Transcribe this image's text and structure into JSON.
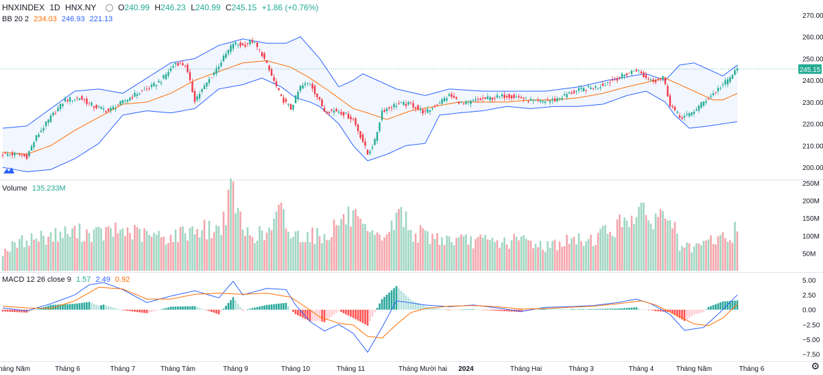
{
  "header": {
    "symbol": "HNXINDEX",
    "interval": "1D",
    "exchange": "HNX.NY",
    "o_label": "O",
    "o_value": "240.99",
    "h_label": "H",
    "h_value": "246.23",
    "l_label": "L",
    "l_value": "240.99",
    "c_label": "C",
    "c_value": "245.15",
    "change": "+1.86 (+0.76%)"
  },
  "bb_legend": {
    "label": "BB 20 2",
    "basis": "234.03",
    "upper": "246.93",
    "lower": "221.13"
  },
  "volume_legend": {
    "label": "Volume",
    "value": "135.233M"
  },
  "macd_legend": {
    "label": "MACD 12 26 close 9",
    "hist": "1.57",
    "macd": "2.49",
    "signal": "0.92"
  },
  "last_price_tag": "245.15",
  "colors": {
    "up": "#22ab94",
    "down": "#f23645",
    "vol_up": "#9fd6c2",
    "vol_down": "#f4a4ab",
    "bb_band": "#2962ff",
    "bb_basis": "#ff6d00",
    "macd_line": "#2962ff",
    "signal_line": "#ff6d00",
    "hist_up_strong": "#26a69a",
    "hist_up_weak": "#b2dfdb",
    "hist_down_strong": "#ff5252",
    "hist_down_weak": "#ffcdd2"
  },
  "chart_data": [
    {
      "type": "candlestick",
      "name": "price",
      "ylim": [
        195,
        275
      ],
      "ytick_labels": [
        "270.00",
        "260.00",
        "250.00",
        "240.00",
        "230.00",
        "220.00",
        "210.00",
        "200.00"
      ],
      "x_tick_labels": [
        "Tháng Năm",
        "Tháng 6",
        "Tháng 7",
        "Tháng Tám",
        "Tháng 9",
        "Tháng 10",
        "Tháng 11",
        "Tháng Mười hai",
        "2024",
        "Tháng Hai",
        "Tháng 3",
        "Tháng 4",
        "Tháng Năm",
        "Tháng 6"
      ],
      "close_anchors": [
        [
          0,
          206
        ],
        [
          6,
          206
        ],
        [
          10,
          205
        ],
        [
          14,
          214
        ],
        [
          20,
          223
        ],
        [
          26,
          231
        ],
        [
          32,
          232
        ],
        [
          38,
          228
        ],
        [
          44,
          226
        ],
        [
          50,
          230
        ],
        [
          56,
          234
        ],
        [
          62,
          237
        ],
        [
          66,
          240
        ],
        [
          72,
          248
        ],
        [
          76,
          247
        ],
        [
          80,
          231
        ],
        [
          84,
          237
        ],
        [
          90,
          247
        ],
        [
          96,
          257
        ],
        [
          100,
          256
        ],
        [
          104,
          258
        ],
        [
          108,
          252
        ],
        [
          112,
          242
        ],
        [
          116,
          232
        ],
        [
          120,
          227
        ],
        [
          124,
          237
        ],
        [
          128,
          239
        ],
        [
          134,
          226
        ],
        [
          140,
          226
        ],
        [
          146,
          222
        ],
        [
          150,
          212
        ],
        [
          152,
          206
        ],
        [
          155,
          212
        ],
        [
          158,
          226
        ],
        [
          164,
          229
        ],
        [
          170,
          229
        ],
        [
          176,
          225
        ],
        [
          182,
          230
        ],
        [
          186,
          233
        ],
        [
          192,
          229
        ],
        [
          198,
          231
        ],
        [
          204,
          232
        ],
        [
          210,
          233
        ],
        [
          216,
          232
        ],
        [
          222,
          230
        ],
        [
          230,
          231
        ],
        [
          236,
          234
        ],
        [
          242,
          236
        ],
        [
          248,
          237
        ],
        [
          254,
          240
        ],
        [
          260,
          243
        ],
        [
          264,
          245
        ],
        [
          268,
          241
        ],
        [
          272,
          240
        ],
        [
          275,
          242
        ],
        [
          278,
          229
        ],
        [
          282,
          223
        ],
        [
          286,
          224
        ],
        [
          290,
          228
        ],
        [
          294,
          232
        ],
        [
          298,
          236
        ],
        [
          302,
          240
        ],
        [
          306,
          245.15
        ]
      ],
      "bb_upper_anchors": [
        [
          0,
          218
        ],
        [
          10,
          219
        ],
        [
          20,
          227
        ],
        [
          30,
          235
        ],
        [
          40,
          236
        ],
        [
          50,
          234
        ],
        [
          60,
          241
        ],
        [
          70,
          248
        ],
        [
          80,
          250
        ],
        [
          90,
          256
        ],
        [
          100,
          259
        ],
        [
          110,
          257
        ],
        [
          118,
          257
        ],
        [
          124,
          260
        ],
        [
          132,
          250
        ],
        [
          140,
          237
        ],
        [
          146,
          240
        ],
        [
          150,
          243
        ],
        [
          156,
          240
        ],
        [
          164,
          236
        ],
        [
          176,
          233
        ],
        [
          186,
          236
        ],
        [
          200,
          235
        ],
        [
          214,
          235
        ],
        [
          226,
          235
        ],
        [
          240,
          237
        ],
        [
          252,
          240
        ],
        [
          262,
          242
        ],
        [
          268,
          243
        ],
        [
          276,
          240
        ],
        [
          282,
          247
        ],
        [
          288,
          248
        ],
        [
          294,
          245
        ],
        [
          300,
          242
        ],
        [
          306,
          247
        ]
      ],
      "bb_basis_anchors": [
        [
          0,
          207
        ],
        [
          10,
          206
        ],
        [
          20,
          210
        ],
        [
          30,
          217
        ],
        [
          40,
          223
        ],
        [
          50,
          229
        ],
        [
          60,
          230
        ],
        [
          70,
          234
        ],
        [
          80,
          240
        ],
        [
          90,
          244
        ],
        [
          100,
          248
        ],
        [
          110,
          249
        ],
        [
          120,
          246
        ],
        [
          128,
          241
        ],
        [
          136,
          235
        ],
        [
          146,
          227
        ],
        [
          152,
          225
        ],
        [
          160,
          222
        ],
        [
          170,
          226
        ],
        [
          180,
          228
        ],
        [
          190,
          230
        ],
        [
          200,
          230
        ],
        [
          210,
          230
        ],
        [
          220,
          231
        ],
        [
          230,
          231
        ],
        [
          240,
          232
        ],
        [
          250,
          234
        ],
        [
          260,
          237
        ],
        [
          268,
          239
        ],
        [
          276,
          241
        ],
        [
          286,
          236
        ],
        [
          296,
          231
        ],
        [
          300,
          231
        ],
        [
          306,
          234
        ]
      ],
      "bb_lower_anchors": [
        [
          0,
          200
        ],
        [
          10,
          198
        ],
        [
          20,
          199
        ],
        [
          30,
          204
        ],
        [
          40,
          211
        ],
        [
          50,
          224
        ],
        [
          60,
          226
        ],
        [
          70,
          225
        ],
        [
          80,
          227
        ],
        [
          90,
          236
        ],
        [
          100,
          238
        ],
        [
          108,
          241
        ],
        [
          116,
          237
        ],
        [
          122,
          232
        ],
        [
          128,
          230
        ],
        [
          132,
          228
        ],
        [
          140,
          220
        ],
        [
          146,
          210
        ],
        [
          152,
          203
        ],
        [
          160,
          206
        ],
        [
          168,
          210
        ],
        [
          176,
          211
        ],
        [
          182,
          224
        ],
        [
          190,
          225
        ],
        [
          200,
          226
        ],
        [
          210,
          228
        ],
        [
          220,
          227
        ],
        [
          230,
          228
        ],
        [
          240,
          228
        ],
        [
          250,
          229
        ],
        [
          260,
          233
        ],
        [
          268,
          235
        ],
        [
          276,
          230
        ],
        [
          280,
          224
        ],
        [
          286,
          218
        ],
        [
          294,
          219
        ],
        [
          300,
          220
        ],
        [
          306,
          221
        ]
      ]
    },
    {
      "type": "bar",
      "name": "volume",
      "ylim": [
        0,
        250
      ],
      "ytick_labels": [
        "250M",
        "200M",
        "150M",
        "100M",
        "50M"
      ],
      "value_anchors": [
        [
          0,
          55
        ],
        [
          10,
          90
        ],
        [
          20,
          100
        ],
        [
          30,
          110
        ],
        [
          40,
          105
        ],
        [
          50,
          115
        ],
        [
          60,
          100
        ],
        [
          70,
          95
        ],
        [
          80,
          120
        ],
        [
          90,
          115
        ],
        [
          96,
          230
        ],
        [
          100,
          110
        ],
        [
          110,
          100
        ],
        [
          116,
          170
        ],
        [
          120,
          100
        ],
        [
          128,
          105
        ],
        [
          134,
          95
        ],
        [
          140,
          140
        ],
        [
          146,
          155
        ],
        [
          150,
          110
        ],
        [
          156,
          90
        ],
        [
          162,
          120
        ],
        [
          166,
          175
        ],
        [
          170,
          110
        ],
        [
          180,
          95
        ],
        [
          190,
          85
        ],
        [
          200,
          85
        ],
        [
          210,
          80
        ],
        [
          216,
          90
        ],
        [
          226,
          70
        ],
        [
          236,
          85
        ],
        [
          246,
          90
        ],
        [
          250,
          110
        ],
        [
          256,
          125
        ],
        [
          262,
          165
        ],
        [
          270,
          150
        ],
        [
          278,
          160
        ],
        [
          282,
          70
        ],
        [
          288,
          60
        ],
        [
          296,
          90
        ],
        [
          304,
          95
        ],
        [
          306,
          135
        ]
      ]
    },
    {
      "type": "line",
      "name": "macd",
      "ylim": [
        -8.5,
        6.0
      ],
      "ytick_labels": [
        "5.00",
        "2.50",
        "0.00",
        "−2.50",
        "−5.00",
        "−7.50"
      ],
      "macd_anchors": [
        [
          0,
          0.3
        ],
        [
          10,
          -0.2
        ],
        [
          20,
          1.0
        ],
        [
          30,
          2.5
        ],
        [
          36,
          4.2
        ],
        [
          42,
          4.6
        ],
        [
          50,
          3.4
        ],
        [
          60,
          1.2
        ],
        [
          70,
          2.3
        ],
        [
          80,
          3.2
        ],
        [
          90,
          2.0
        ],
        [
          96,
          4.8
        ],
        [
          100,
          2.5
        ],
        [
          110,
          3.6
        ],
        [
          118,
          3.4
        ],
        [
          122,
          0.8
        ],
        [
          128,
          -2.0
        ],
        [
          134,
          -3.6
        ],
        [
          140,
          -2.5
        ],
        [
          146,
          -4.0
        ],
        [
          152,
          -7.2
        ],
        [
          158,
          -3.0
        ],
        [
          164,
          1.5
        ],
        [
          176,
          0.8
        ],
        [
          186,
          0.5
        ],
        [
          196,
          0.8
        ],
        [
          206,
          0.3
        ],
        [
          216,
          -0.3
        ],
        [
          226,
          0.4
        ],
        [
          236,
          0.5
        ],
        [
          246,
          0.7
        ],
        [
          256,
          1.2
        ],
        [
          264,
          1.8
        ],
        [
          270,
          1.0
        ],
        [
          278,
          -0.8
        ],
        [
          284,
          -3.5
        ],
        [
          292,
          -3.0
        ],
        [
          300,
          0.0
        ],
        [
          306,
          2.49
        ]
      ],
      "signal_anchors": [
        [
          0,
          0.6
        ],
        [
          10,
          0.3
        ],
        [
          20,
          0.2
        ],
        [
          30,
          1.5
        ],
        [
          40,
          3.8
        ],
        [
          50,
          3.5
        ],
        [
          60,
          1.8
        ],
        [
          70,
          1.8
        ],
        [
          80,
          2.6
        ],
        [
          90,
          2.8
        ],
        [
          100,
          2.6
        ],
        [
          110,
          2.8
        ],
        [
          120,
          2.1
        ],
        [
          126,
          0.5
        ],
        [
          132,
          -1.2
        ],
        [
          140,
          -2.3
        ],
        [
          146,
          -2.6
        ],
        [
          152,
          -4.5
        ],
        [
          158,
          -4.8
        ],
        [
          164,
          -2.5
        ],
        [
          170,
          -0.5
        ],
        [
          176,
          0.2
        ],
        [
          186,
          0.6
        ],
        [
          196,
          0.7
        ],
        [
          206,
          0.5
        ],
        [
          216,
          0.1
        ],
        [
          226,
          0.2
        ],
        [
          236,
          0.4
        ],
        [
          246,
          0.6
        ],
        [
          256,
          1.0
        ],
        [
          266,
          1.5
        ],
        [
          272,
          0.8
        ],
        [
          280,
          -0.8
        ],
        [
          288,
          -2.4
        ],
        [
          294,
          -2.7
        ],
        [
          300,
          -1.4
        ],
        [
          306,
          0.92
        ]
      ],
      "histogram": "macd minus signal"
    }
  ]
}
